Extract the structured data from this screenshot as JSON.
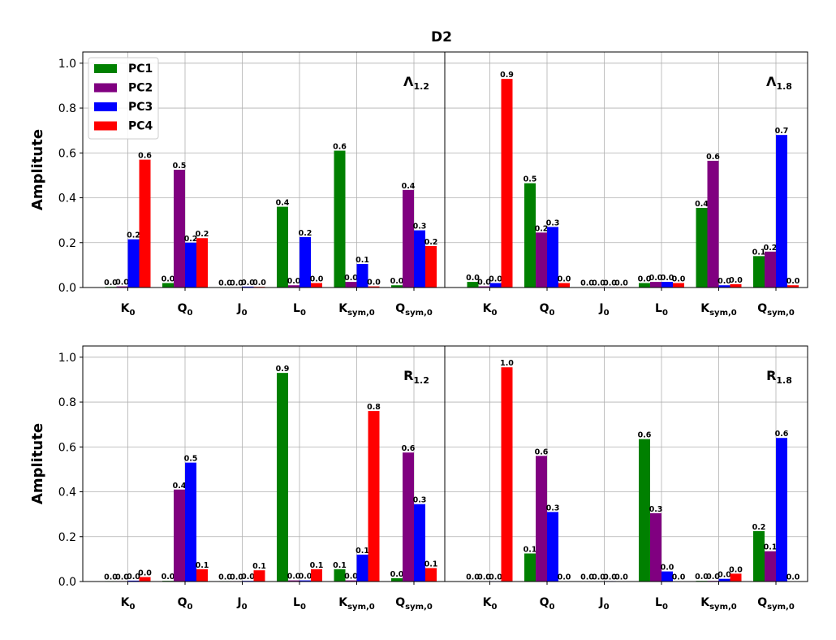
{
  "figure_title": "D2",
  "chart_data": {
    "type": "bar",
    "title": "D2",
    "ylabel": "Amplitute",
    "ylim": [
      0,
      1.05
    ],
    "yticks": [
      "0.0",
      "0.2",
      "0.4",
      "0.6",
      "0.8",
      "1.0"
    ],
    "categories": [
      {
        "base": "K",
        "sub": "0"
      },
      {
        "base": "Q",
        "sub": "0"
      },
      {
        "base": "J",
        "sub": "0"
      },
      {
        "base": "L",
        "sub": "0"
      },
      {
        "base": "K",
        "sub": "sym,0"
      },
      {
        "base": "Q",
        "sub": "sym,0"
      }
    ],
    "series_names": [
      "PC1",
      "PC2",
      "PC3",
      "PC4"
    ],
    "series_colors": [
      "#008000",
      "#800080",
      "#0000ff",
      "#ff0000"
    ],
    "legend_location": "top-left of first panel",
    "panels": [
      {
        "title_base": "Λ",
        "title_sub": "1.2",
        "values": [
          [
            0.003,
            0.02,
            0.002,
            0.36,
            0.61,
            0.01
          ],
          [
            0.005,
            0.525,
            0.002,
            0.01,
            0.025,
            0.435
          ],
          [
            0.215,
            0.2,
            0.004,
            0.225,
            0.105,
            0.255
          ],
          [
            0.57,
            0.22,
            0.003,
            0.02,
            0.005,
            0.185
          ]
        ],
        "labels": [
          [
            "0.0",
            "0.0",
            "0.0",
            "0.4",
            "0.6",
            "0.0"
          ],
          [
            "0.0",
            "0.5",
            "0.0",
            "0.0",
            "0.0",
            "0.4"
          ],
          [
            "0.2",
            "0.2",
            "0.0",
            "0.2",
            "0.1",
            "0.3"
          ],
          [
            "0.6",
            "0.2",
            "0.0",
            "0.0",
            "0.0",
            "0.2"
          ]
        ]
      },
      {
        "title_base": "Λ",
        "title_sub": "1.8",
        "values": [
          [
            0.025,
            0.465,
            0.002,
            0.02,
            0.355,
            0.14
          ],
          [
            0.005,
            0.245,
            0.002,
            0.025,
            0.565,
            0.16
          ],
          [
            0.02,
            0.27,
            0.002,
            0.025,
            0.01,
            0.68
          ],
          [
            0.93,
            0.02,
            0.002,
            0.02,
            0.015,
            0.01
          ]
        ],
        "labels": [
          [
            "0.0",
            "0.5",
            "0.0",
            "0.0",
            "0.4",
            "0.1"
          ],
          [
            "0.0",
            "0.2",
            "0.0",
            "0.0",
            "0.6",
            "0.2"
          ],
          [
            "0.0",
            "0.3",
            "0.0",
            "0.0",
            "0.0",
            "0.7"
          ],
          [
            "0.9",
            "0.0",
            "0.0",
            "0.0",
            "0.0",
            "0.0"
          ]
        ]
      },
      {
        "title_base": "R",
        "title_sub": "1.2",
        "values": [
          [
            0.002,
            0.003,
            0.002,
            0.93,
            0.055,
            0.015
          ],
          [
            0.002,
            0.41,
            0.002,
            0.005,
            0.005,
            0.575
          ],
          [
            0.004,
            0.53,
            0.003,
            0.005,
            0.12,
            0.345
          ],
          [
            0.02,
            0.055,
            0.05,
            0.055,
            0.76,
            0.06
          ]
        ],
        "labels": [
          [
            "0.0",
            "0.0",
            "0.0",
            "0.9",
            "0.1",
            "0.0"
          ],
          [
            "0.0",
            "0.4",
            "0.0",
            "0.0",
            "0.0",
            "0.6"
          ],
          [
            "0.0",
            "0.5",
            "0.0",
            "0.0",
            "0.1",
            "0.3"
          ],
          [
            "0.0",
            "0.1",
            "0.1",
            "0.1",
            "0.8",
            "0.1"
          ]
        ]
      },
      {
        "title_base": "R",
        "title_sub": "1.8",
        "values": [
          [
            0.001,
            0.125,
            0.001,
            0.635,
            0.003,
            0.225
          ],
          [
            0.001,
            0.56,
            0.001,
            0.305,
            0.003,
            0.135
          ],
          [
            0.002,
            0.31,
            0.002,
            0.045,
            0.012,
            0.64
          ],
          [
            0.955,
            0.001,
            0.001,
            0.001,
            0.035,
            0.001
          ]
        ],
        "labels": [
          [
            "0.0",
            "0.1",
            "0.0",
            "0.6",
            "0.0",
            "0.2"
          ],
          [
            "0.0",
            "0.6",
            "0.0",
            "0.3",
            "0.0",
            "0.1"
          ],
          [
            "0.0",
            "0.3",
            "0.0",
            "0.0",
            "0.0",
            "0.6"
          ],
          [
            "1.0",
            "0.0",
            "0.0",
            "0.0",
            "0.0",
            "0.0"
          ]
        ]
      }
    ]
  }
}
